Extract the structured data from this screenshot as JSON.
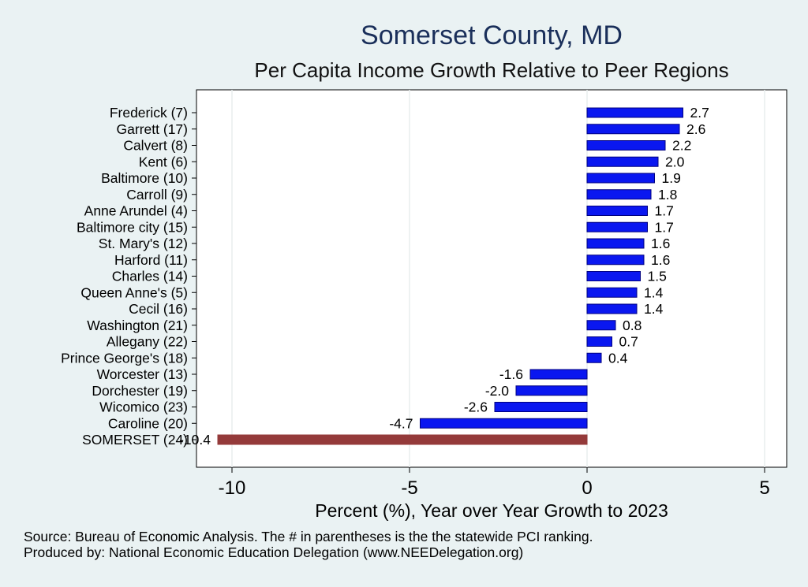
{
  "chart_data": {
    "type": "bar",
    "orientation": "horizontal",
    "title": "Somerset County, MD",
    "subtitle": "Per Capita Income Growth Relative to Peer Regions",
    "xlabel": "Percent (%), Year over Year Growth to 2023",
    "ylabel": "",
    "xlim": [
      -11,
      5.5
    ],
    "xticks": [
      -10,
      -5,
      0,
      5
    ],
    "grid": true,
    "categories": [
      "Frederick  (7)",
      "Garrett (17)",
      "Calvert  (8)",
      "Kent  (6)",
      "Baltimore (10)",
      "Carroll  (9)",
      "Anne Arundel  (4)",
      "Baltimore city (15)",
      "St. Mary's (12)",
      "Harford (11)",
      "Charles (14)",
      "Queen Anne's  (5)",
      "Cecil (16)",
      "Washington (21)",
      "Allegany (22)",
      "Prince George's (18)",
      "Worcester (13)",
      "Dorchester (19)",
      "Wicomico (23)",
      "Caroline (20)",
      "SOMERSET (24)"
    ],
    "values": [
      2.7,
      2.6,
      2.2,
      2.0,
      1.9,
      1.8,
      1.7,
      1.7,
      1.6,
      1.6,
      1.5,
      1.4,
      1.4,
      0.8,
      0.7,
      0.4,
      -1.6,
      -2.0,
      -2.6,
      -4.7,
      -10.4
    ],
    "value_labels": [
      "2.7",
      "2.6",
      "2.2",
      "2.0",
      "1.9",
      "1.8",
      "1.7",
      "1.7",
      "1.6",
      "1.6",
      "1.5",
      "1.4",
      "1.4",
      "0.8",
      "0.7",
      "0.4",
      "-1.6",
      "-2.0",
      "-2.6",
      "-4.7",
      "-10.4"
    ],
    "highlight_index": 20,
    "colors": {
      "bar": "#0a17f0",
      "highlight": "#943a3a",
      "bar_edge": "#000080",
      "plot_bg": "#ffffff",
      "page_bg": "#eaf2f3",
      "grid": "#e8eeee"
    }
  },
  "footer": {
    "source_line_1": "Source: Bureau of Economic Analysis. The # in parentheses is the the statewide PCI ranking.",
    "source_line_2": "Produced by: National Economic Education Delegation (www.NEEDelegation.org)"
  }
}
